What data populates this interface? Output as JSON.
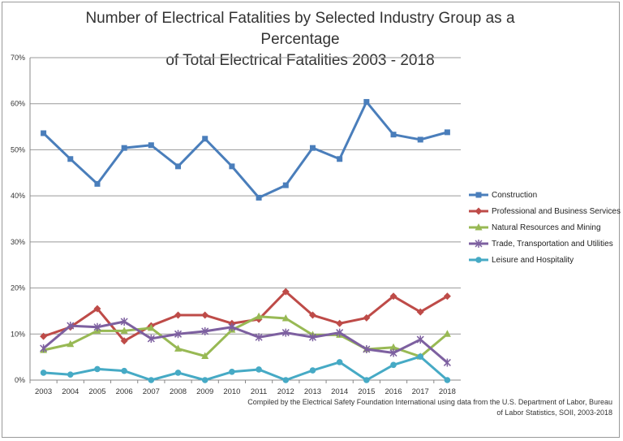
{
  "chart_data": {
    "type": "line",
    "title": "Number of Electrical Fatalities by Selected Industry Group as a Percentage of Total Electrical Fatalities 2003 - 2018",
    "title_lines": [
      "Number of Electrical Fatalities by Selected Industry Group as a Percentage",
      "of Total Electrical Fatalities 2003 - 2018"
    ],
    "source": "Compiled by the Electrical Safety Foundation International using data from the U.S. Department of Labor, Bureau of Labor Statistics, SOII, 2003-2018",
    "categories": [
      "2003",
      "2004",
      "2005",
      "2006",
      "2007",
      "2008",
      "2009",
      "2010",
      "2011",
      "2012",
      "2013",
      "2014",
      "2015",
      "2016",
      "2017",
      "2018"
    ],
    "ylim": [
      0,
      70
    ],
    "yticks": [
      "0%",
      "10%",
      "20%",
      "30%",
      "40%",
      "50%",
      "60%",
      "70%"
    ],
    "grid": true,
    "legend_position": "right",
    "series": [
      {
        "name": "Construction",
        "color": "#4a7ebb",
        "marker": "square",
        "values": [
          53.6,
          48.0,
          42.6,
          50.4,
          51.0,
          46.4,
          52.4,
          46.4,
          39.6,
          42.3,
          50.4,
          48.0,
          60.4,
          53.3,
          52.2,
          53.8
        ]
      },
      {
        "name": "Professional and Business Services",
        "color": "#be4b48",
        "marker": "diamond",
        "values": [
          9.5,
          11.5,
          15.5,
          8.5,
          11.8,
          14.1,
          14.1,
          12.3,
          13.2,
          19.2,
          14.1,
          12.3,
          13.5,
          18.2,
          14.8,
          18.2
        ]
      },
      {
        "name": "Natural Resources and Mining",
        "color": "#98b954",
        "marker": "triangle",
        "values": [
          6.5,
          7.8,
          10.7,
          10.7,
          11.3,
          6.8,
          5.2,
          10.9,
          13.8,
          13.4,
          9.8,
          9.8,
          6.7,
          7.1,
          5.1,
          10.0
        ]
      },
      {
        "name": "Trade, Transportation and Utilities",
        "color": "#7d60a0",
        "marker": "star",
        "values": [
          6.9,
          11.8,
          11.5,
          12.7,
          9.0,
          10.0,
          10.6,
          11.5,
          9.3,
          10.3,
          9.3,
          10.3,
          6.7,
          5.9,
          8.8,
          3.8
        ]
      },
      {
        "name": "Leisure and Hospitality",
        "color": "#46aac5",
        "marker": "circle",
        "values": [
          1.6,
          1.2,
          2.4,
          2.0,
          0,
          1.6,
          0,
          1.8,
          2.3,
          0,
          2.1,
          3.9,
          0,
          3.3,
          5.1,
          0
        ]
      }
    ]
  }
}
